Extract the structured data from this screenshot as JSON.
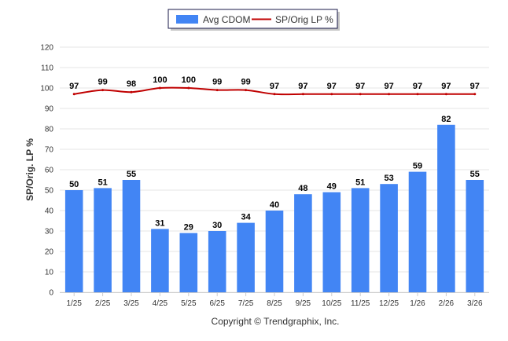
{
  "chart_data": {
    "type": "bar",
    "categories": [
      "1/25",
      "2/25",
      "3/25",
      "4/25",
      "5/25",
      "6/25",
      "7/25",
      "8/25",
      "9/25",
      "10/25",
      "11/25",
      "12/25",
      "1/26",
      "2/26",
      "3/26"
    ],
    "series": [
      {
        "name": "Avg CDOM",
        "type": "bar",
        "color": "#4285F4",
        "values": [
          50,
          51,
          55,
          31,
          29,
          30,
          34,
          40,
          48,
          49,
          51,
          53,
          59,
          82,
          55
        ]
      },
      {
        "name": "SP/Orig LP %",
        "type": "line",
        "color": "#C00000",
        "values": [
          97,
          99,
          98,
          100,
          100,
          99,
          99,
          97,
          97,
          97,
          97,
          97,
          97,
          97,
          97
        ]
      }
    ],
    "ylabel": "SP/Orig. LP %",
    "ylim": [
      0,
      120
    ],
    "yticks": [
      0,
      10,
      20,
      30,
      40,
      50,
      60,
      70,
      80,
      90,
      100,
      110,
      120
    ],
    "grid": true,
    "legend_position": "top-center",
    "credit": "Copyright © Trendgraphix, Inc."
  }
}
